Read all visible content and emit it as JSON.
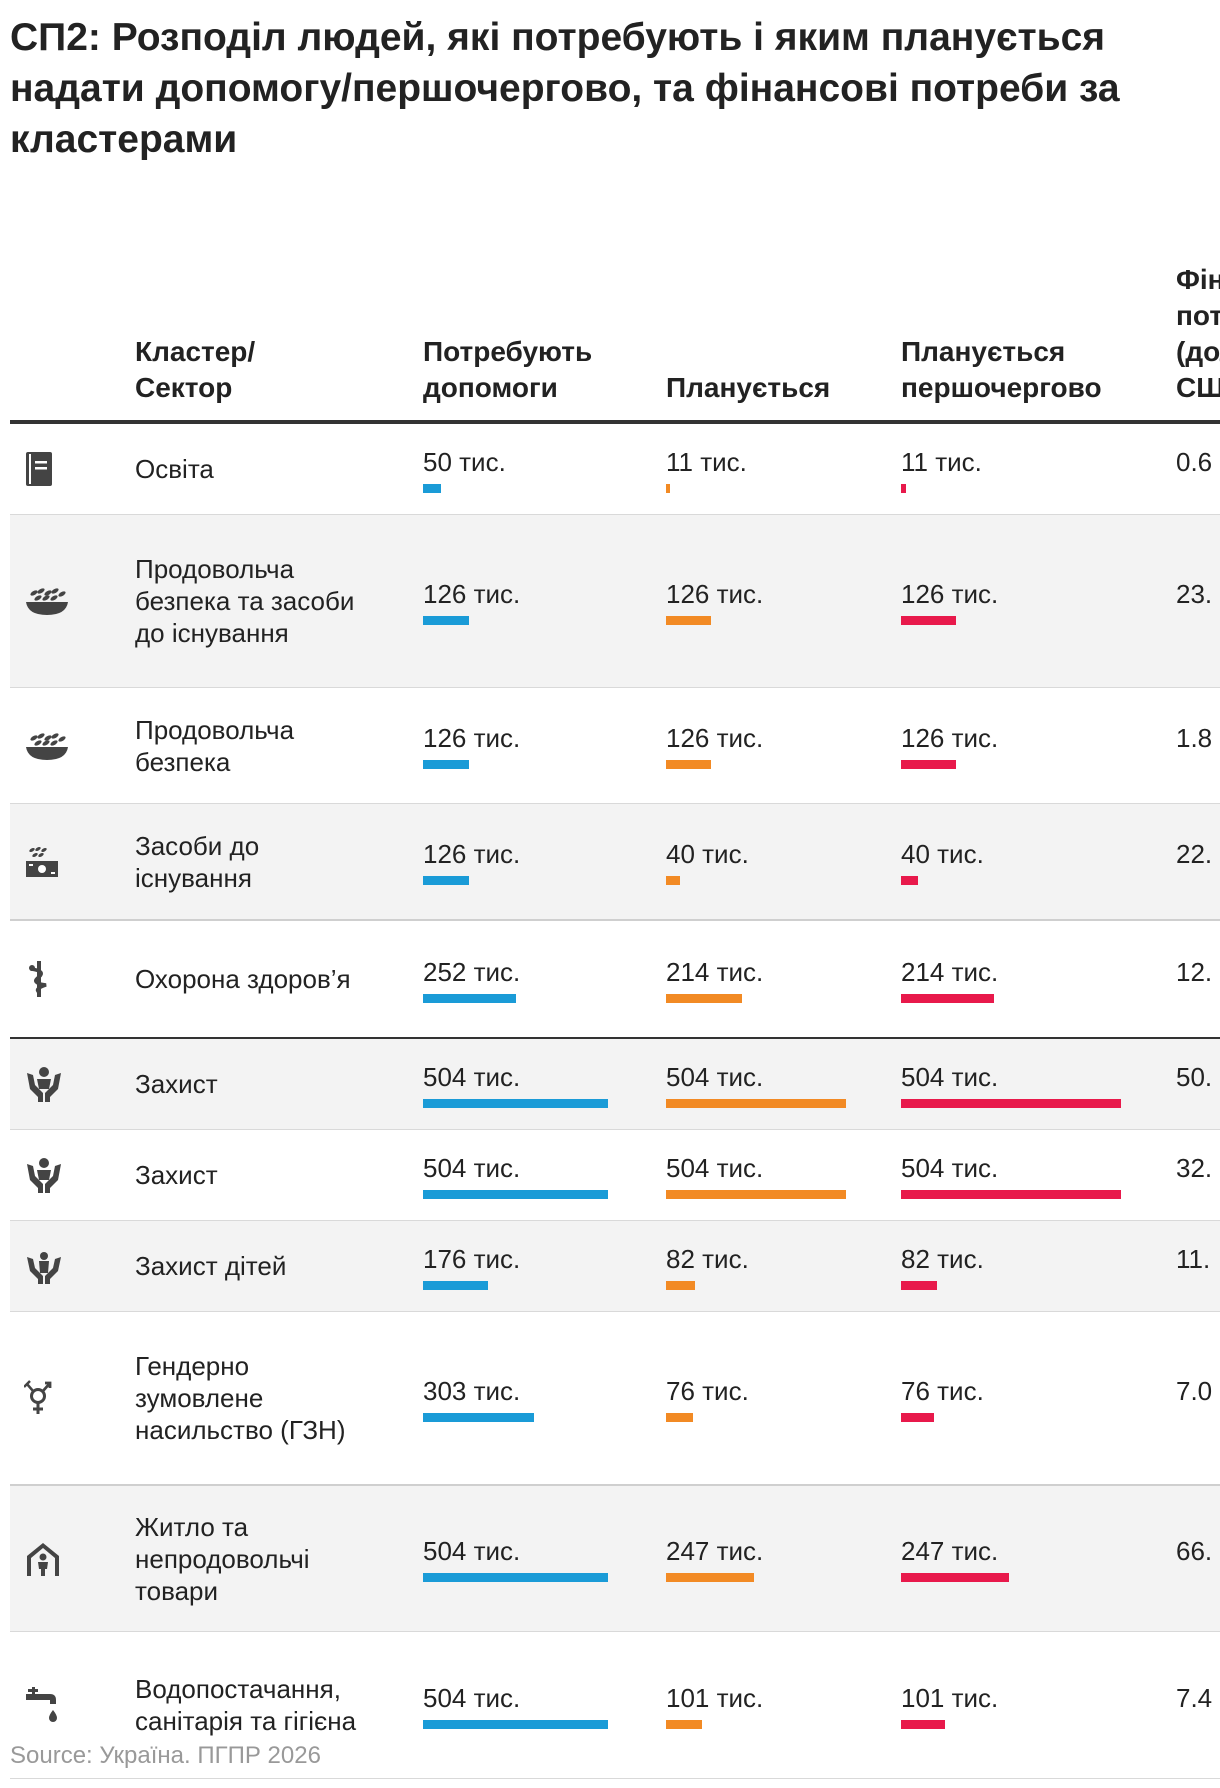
{
  "title": "СП2: Розподіл людей, які потребують і яким планується надати допомогу/першочергово, та фінансові потреби за кластерами",
  "source": "Source: Україна. ПГПР 2026",
  "colors": {
    "need": "#1a9bd7",
    "planned": "#f28a24",
    "priority": "#e8194b",
    "financial": "#555555"
  },
  "headers": {
    "cluster": "Кластер/\nСектор",
    "need": "Потребують допомоги",
    "planned": "Планується",
    "priority": "Планується першочергово",
    "financial": "Фінансові потреби (долари США)"
  },
  "chart_data": {
    "type": "table",
    "title": "СП2: Розподіл людей, які потребують і яким планується надати допомогу/першочергово, та фінансові потреби за кластерами",
    "columns": [
      "Кластер/Сектор",
      "Потребують допомоги",
      "Планується",
      "Планується першочергово",
      "Фінансові потреби (долари США)"
    ],
    "bar_max": {
      "need": 504,
      "planned": 504,
      "priority": 504,
      "financial": 66
    },
    "rows": [
      {
        "icon": "education-icon",
        "name": "Освіта",
        "need": "50 тис.",
        "need_v": 50,
        "planned": "11 тис.",
        "planned_v": 11,
        "priority": "11 тис.",
        "priority_v": 11,
        "financial": "0.6",
        "financial_v": 0.6
      },
      {
        "icon": "food-security-icon",
        "name": "Продовольча безпека та засоби до існування",
        "need": "126 тис.",
        "need_v": 126,
        "planned": "126 тис.",
        "planned_v": 126,
        "priority": "126 тис.",
        "priority_v": 126,
        "financial": "23.",
        "financial_v": 23
      },
      {
        "icon": "food-security-icon",
        "name": "Продовольча безпека",
        "need": "126 тис.",
        "need_v": 126,
        "planned": "126 тис.",
        "planned_v": 126,
        "priority": "126 тис.",
        "priority_v": 126,
        "financial": "1.8",
        "financial_v": 1.8
      },
      {
        "icon": "livelihoods-icon",
        "name": "Засоби до існування",
        "need": "126 тис.",
        "need_v": 126,
        "planned": "40 тис.",
        "planned_v": 40,
        "priority": "40 тис.",
        "priority_v": 40,
        "financial": "22.",
        "financial_v": 22
      },
      {
        "icon": "health-icon",
        "name": "Охорона здоров’я",
        "need": "252 тис.",
        "need_v": 252,
        "planned": "214 тис.",
        "planned_v": 214,
        "priority": "214 тис.",
        "priority_v": 214,
        "financial": "12.",
        "financial_v": 12
      },
      {
        "icon": "protection-icon",
        "name": "Захист",
        "need": "504 тис.",
        "need_v": 504,
        "planned": "504 тис.",
        "planned_v": 504,
        "priority": "504 тис.",
        "priority_v": 504,
        "financial": "50.",
        "financial_v": 50
      },
      {
        "icon": "protection-icon",
        "name": "Захист",
        "need": "504 тис.",
        "need_v": 504,
        "planned": "504 тис.",
        "planned_v": 504,
        "priority": "504 тис.",
        "priority_v": 504,
        "financial": "32.",
        "financial_v": 32
      },
      {
        "icon": "child-protection-icon",
        "name": "Захист дітей",
        "need": "176 тис.",
        "need_v": 176,
        "planned": "82 тис.",
        "planned_v": 82,
        "priority": "82 тис.",
        "priority_v": 82,
        "financial": "11.",
        "financial_v": 11
      },
      {
        "icon": "gender-icon",
        "name": "Гендерно зумовлене насильство (ГЗН)",
        "need": "303 тис.",
        "need_v": 303,
        "planned": "76 тис.",
        "planned_v": 76,
        "priority": "76 тис.",
        "priority_v": 76,
        "financial": "7.0",
        "financial_v": 7.0
      },
      {
        "icon": "shelter-icon",
        "name": "Житло та непродовольчі товари",
        "need": "504 тис.",
        "need_v": 504,
        "planned": "247 тис.",
        "planned_v": 247,
        "priority": "247 тис.",
        "priority_v": 247,
        "financial": "66.",
        "financial_v": 66
      },
      {
        "icon": "wash-icon",
        "name": "Водопостачання, санітарія та гігієна",
        "need": "504 тис.",
        "need_v": 504,
        "planned": "101 тис.",
        "planned_v": 101,
        "priority": "101 тис.",
        "priority_v": 101,
        "financial": "7.4",
        "financial_v": 7.4
      }
    ]
  }
}
